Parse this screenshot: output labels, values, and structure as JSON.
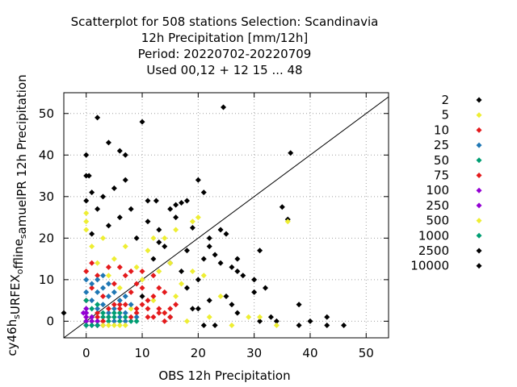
{
  "chart_data": {
    "type": "scatter",
    "title_lines": [
      "Scatterplot for  508 stations Selection: Scandinavia",
      "12h Precipitation [mm/12h]",
      "Period: 20220702-20220709",
      "Used  00,12  + 12 15 ... 48"
    ],
    "xlabel": "OBS 12h Precipitation",
    "ylabel": "cy46h_sURFEX_offline_samuelPR 12h Precipitation",
    "xlim": [
      -4,
      54
    ],
    "ylim": [
      -4,
      55
    ],
    "x_ticks": [
      0,
      10,
      20,
      30,
      40,
      50
    ],
    "y_ticks": [
      0,
      10,
      20,
      30,
      40,
      50
    ],
    "grid": true,
    "diagonal_line": true,
    "legend_position": "right",
    "series": [
      {
        "name": "2",
        "color": "#000000",
        "points": [
          [
            -4,
            2
          ],
          [
            0,
            35
          ],
          [
            0.5,
            35
          ],
          [
            0,
            40
          ],
          [
            2,
            49
          ],
          [
            4,
            43
          ],
          [
            10,
            48
          ],
          [
            6,
            41
          ],
          [
            7,
            40
          ],
          [
            24.5,
            51.5
          ],
          [
            36.5,
            40.5
          ],
          [
            35,
            27.5
          ],
          [
            36,
            24.5
          ],
          [
            25,
            21
          ],
          [
            24,
            22
          ],
          [
            22,
            20
          ],
          [
            20,
            34
          ],
          [
            18,
            29
          ],
          [
            21,
            31
          ],
          [
            16,
            28
          ],
          [
            17,
            28.5
          ],
          [
            12.5,
            29
          ],
          [
            11,
            29
          ],
          [
            19,
            22.5
          ],
          [
            16,
            25
          ],
          [
            15,
            27
          ],
          [
            31,
            17
          ],
          [
            27,
            12
          ],
          [
            30,
            10
          ],
          [
            32,
            8
          ],
          [
            27,
            15
          ],
          [
            30,
            7
          ],
          [
            26,
            4
          ],
          [
            27,
            2
          ],
          [
            33,
            1
          ],
          [
            31,
            0
          ],
          [
            34,
            0
          ],
          [
            38,
            -1
          ],
          [
            40,
            0
          ],
          [
            43,
            1
          ],
          [
            43,
            -1
          ],
          [
            46,
            -1
          ],
          [
            38,
            4
          ],
          [
            20,
            10
          ],
          [
            21,
            15
          ],
          [
            24,
            14
          ],
          [
            18,
            17
          ],
          [
            14,
            18
          ],
          [
            22,
            5
          ],
          [
            25,
            6
          ],
          [
            19,
            3
          ],
          [
            23,
            -1
          ],
          [
            17,
            12
          ],
          [
            10,
            6
          ],
          [
            12,
            15
          ],
          [
            9,
            20
          ],
          [
            13,
            22
          ],
          [
            6,
            25
          ],
          [
            8,
            27
          ],
          [
            3,
            30
          ],
          [
            5,
            32
          ],
          [
            0,
            29
          ],
          [
            1,
            31
          ],
          [
            7,
            34
          ],
          [
            2,
            27
          ],
          [
            4,
            23
          ],
          [
            1,
            21
          ],
          [
            11,
            24
          ],
          [
            13,
            19
          ],
          [
            15,
            14
          ],
          [
            18,
            8
          ],
          [
            20,
            3
          ],
          [
            21,
            -1
          ],
          [
            15,
            1
          ],
          [
            28,
            11
          ],
          [
            26,
            13
          ],
          [
            22,
            18
          ],
          [
            23,
            16
          ]
        ]
      },
      {
        "name": "5",
        "color": "#eeee33",
        "points": [
          [
            20,
            25
          ],
          [
            19,
            24
          ],
          [
            36,
            24
          ],
          [
            26,
            -1
          ],
          [
            29,
            1
          ],
          [
            31,
            1
          ],
          [
            34,
            -1
          ],
          [
            22,
            1
          ],
          [
            24,
            6
          ],
          [
            21,
            11
          ],
          [
            0,
            26
          ],
          [
            0,
            24
          ],
          [
            1,
            18
          ],
          [
            3,
            20
          ],
          [
            5,
            15
          ],
          [
            7,
            18
          ],
          [
            9,
            13
          ],
          [
            11,
            17
          ],
          [
            13,
            12
          ],
          [
            15,
            14
          ],
          [
            17,
            9
          ],
          [
            19,
            12
          ],
          [
            4,
            11
          ],
          [
            6,
            8
          ],
          [
            8,
            3
          ],
          [
            12,
            5
          ],
          [
            14,
            2
          ],
          [
            16,
            6
          ],
          [
            18,
            0
          ],
          [
            10,
            10
          ],
          [
            2,
            14
          ],
          [
            0,
            22
          ],
          [
            16,
            22
          ],
          [
            14,
            20
          ],
          [
            12,
            20
          ]
        ]
      },
      {
        "name": "10",
        "color": "#e41a1c",
        "points": [
          [
            0,
            12
          ],
          [
            1,
            8
          ],
          [
            2,
            11
          ],
          [
            3,
            6
          ],
          [
            4,
            13
          ],
          [
            5,
            9
          ],
          [
            6,
            4
          ],
          [
            7,
            11
          ],
          [
            8,
            7
          ],
          [
            9,
            2
          ],
          [
            10,
            8
          ],
          [
            11,
            5
          ],
          [
            12,
            11
          ],
          [
            13,
            3
          ],
          [
            14,
            7
          ],
          [
            15,
            1
          ],
          [
            2,
            2
          ],
          [
            0,
            5
          ],
          [
            6,
            13
          ],
          [
            10,
            12
          ],
          [
            12,
            6
          ],
          [
            4,
            1
          ],
          [
            8,
            12
          ],
          [
            14,
            2
          ],
          [
            16,
            4
          ],
          [
            11,
            1
          ],
          [
            3,
            0
          ],
          [
            13,
            8
          ],
          [
            9,
            9
          ],
          [
            1,
            14
          ]
        ]
      },
      {
        "name": "25",
        "color": "#1f77b4",
        "points": [
          [
            0,
            3
          ],
          [
            0,
            7
          ],
          [
            1,
            5
          ],
          [
            1,
            9
          ],
          [
            2,
            3
          ],
          [
            2,
            7
          ],
          [
            3,
            4
          ],
          [
            3,
            8
          ],
          [
            4,
            2
          ],
          [
            4,
            6
          ],
          [
            5,
            3
          ],
          [
            5,
            7
          ],
          [
            6,
            1
          ],
          [
            6,
            5
          ],
          [
            7,
            2
          ],
          [
            7,
            6
          ],
          [
            8,
            4
          ],
          [
            9,
            1
          ],
          [
            1,
            1
          ],
          [
            0,
            10
          ],
          [
            2,
            10
          ],
          [
            3,
            11
          ],
          [
            5,
            0
          ],
          [
            7,
            0
          ],
          [
            4,
            9
          ],
          [
            0,
            0
          ]
        ]
      },
      {
        "name": "50",
        "color": "#009e73",
        "points": [
          [
            0,
            0
          ],
          [
            1,
            1
          ],
          [
            2,
            0
          ],
          [
            3,
            2
          ],
          [
            4,
            0
          ],
          [
            5,
            1
          ],
          [
            6,
            0
          ],
          [
            7,
            1
          ],
          [
            8,
            0
          ],
          [
            9,
            0
          ],
          [
            1,
            3
          ],
          [
            2,
            4
          ],
          [
            0,
            2
          ],
          [
            3,
            1
          ],
          [
            4,
            1
          ],
          [
            5,
            2
          ],
          [
            6,
            2
          ],
          [
            0,
            5
          ]
        ]
      },
      {
        "name": "75",
        "color": "#e41a1c",
        "points": [
          [
            0,
            1
          ],
          [
            1,
            0
          ],
          [
            2,
            1
          ],
          [
            3,
            0
          ],
          [
            4,
            3
          ],
          [
            5,
            4
          ],
          [
            6,
            3
          ],
          [
            7,
            4
          ],
          [
            8,
            1
          ],
          [
            9,
            3
          ],
          [
            10,
            4
          ],
          [
            11,
            3
          ],
          [
            12,
            1
          ],
          [
            13,
            2
          ],
          [
            14,
            0
          ],
          [
            15,
            3
          ]
        ]
      },
      {
        "name": "100",
        "color": "#9400d3",
        "points": [
          [
            0,
            1
          ],
          [
            0,
            2
          ],
          [
            1,
            0
          ],
          [
            1,
            1
          ],
          [
            2,
            0
          ],
          [
            2,
            -1
          ],
          [
            3,
            -1
          ],
          [
            0,
            3
          ],
          [
            -0.5,
            2
          ]
        ]
      },
      {
        "name": "250",
        "color": "#9400d3",
        "points": [
          [
            0,
            0
          ],
          [
            1,
            -1
          ],
          [
            2,
            -1
          ],
          [
            0,
            -1
          ]
        ]
      },
      {
        "name": "500",
        "color": "#eeee33",
        "points": [
          [
            3,
            -1
          ],
          [
            4,
            -1
          ],
          [
            5,
            -1
          ],
          [
            6,
            -1
          ],
          [
            7,
            -1
          ]
        ]
      },
      {
        "name": "1000",
        "color": "#009e73",
        "points": [
          [
            0,
            -1
          ],
          [
            1,
            -1
          ],
          [
            2,
            -1
          ]
        ]
      },
      {
        "name": "2500",
        "color": "#000000",
        "points": []
      },
      {
        "name": "10000",
        "color": "#000000",
        "points": []
      }
    ]
  }
}
